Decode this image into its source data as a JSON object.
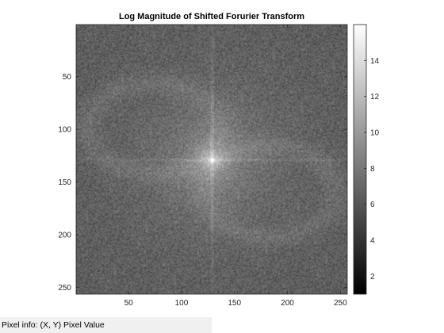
{
  "window": {
    "background": "#ffffff"
  },
  "plot": {
    "title": "Log Magnitude of Shifted Forurier Transform",
    "image_size": [
      256,
      256
    ],
    "x_ticks": [
      "50",
      "100",
      "150",
      "200",
      "250"
    ],
    "y_ticks": [
      "50",
      "100",
      "150",
      "200",
      "250"
    ],
    "colormap": "gray",
    "colorbar": {
      "range": [
        1,
        16
      ],
      "ticks": [
        "2",
        "4",
        "6",
        "8",
        "10",
        "12",
        "14"
      ]
    }
  },
  "chart_data": {
    "type": "heatmap",
    "title": "Log Magnitude of Shifted Forurier Transform",
    "xlabel": "",
    "ylabel": "",
    "xlim": [
      0.5,
      256.5
    ],
    "ylim": [
      0.5,
      256.5
    ],
    "y_direction": "reverse",
    "x_ticks": [
      50,
      100,
      150,
      200,
      250
    ],
    "y_ticks": [
      50,
      100,
      150,
      200,
      250
    ],
    "colormap": "gray",
    "color_range": [
      1,
      16
    ],
    "colorbar_ticks": [
      2,
      4,
      6,
      8,
      10,
      12,
      14
    ],
    "center": [
      129,
      129
    ],
    "peak_value": 16,
    "background_value": 6.5,
    "grid": false
  },
  "status": {
    "pixel_info_label": "Pixel info:",
    "pixel_info_value": "(X, Y)  Pixel Value"
  }
}
